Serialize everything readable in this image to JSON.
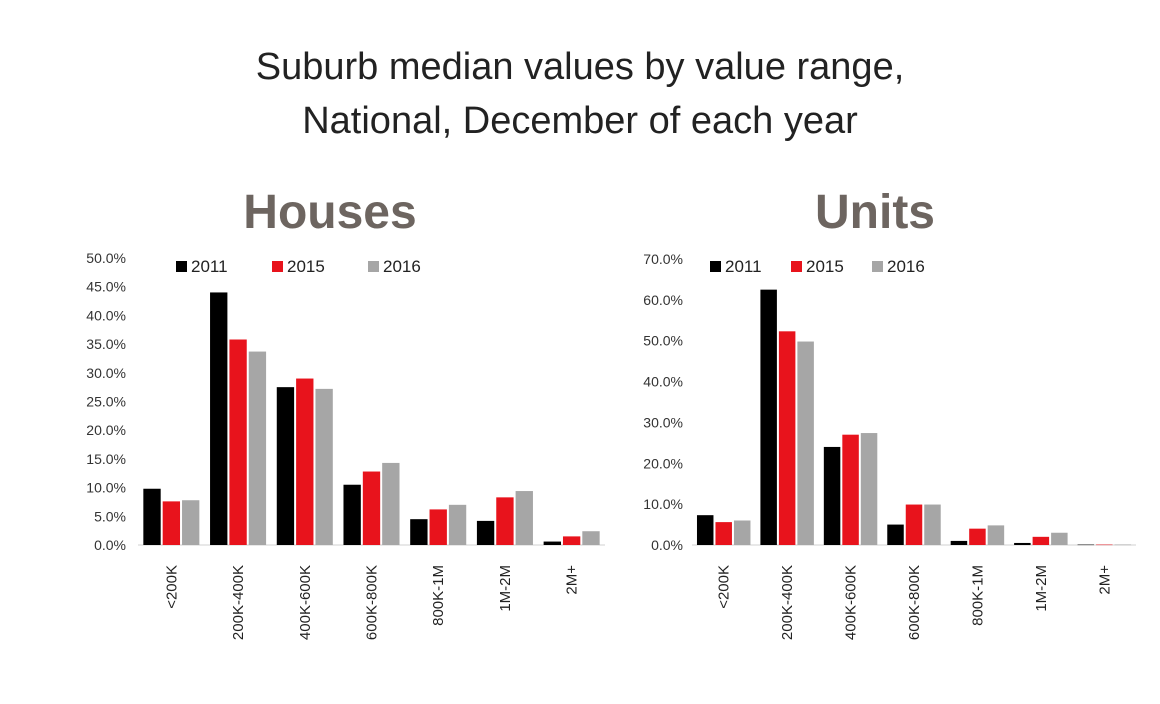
{
  "title_lines": [
    "Suburb median values by value range,",
    "National, December of each year"
  ],
  "chart_data": [
    {
      "type": "bar",
      "title": "Houses",
      "categories": [
        "<200K",
        "200K-400K",
        "400K-600K",
        "600K-800K",
        "800K-1M",
        "1M-2M",
        "2M+"
      ],
      "series": [
        {
          "name": "2011",
          "color": "#000000",
          "values": [
            9.8,
            44.0,
            27.5,
            10.5,
            4.5,
            4.2,
            0.6
          ]
        },
        {
          "name": "2015",
          "color": "#e8131c",
          "values": [
            7.6,
            35.8,
            29.0,
            12.8,
            6.2,
            8.3,
            1.5
          ]
        },
        {
          "name": "2016",
          "color": "#a6a6a6",
          "values": [
            7.8,
            33.7,
            27.2,
            14.3,
            7.0,
            9.4,
            2.4
          ]
        }
      ],
      "ylim": [
        0,
        50
      ],
      "yticks": [
        "0.0%",
        "5.0%",
        "10.0%",
        "15.0%",
        "20.0%",
        "25.0%",
        "30.0%",
        "35.0%",
        "40.0%",
        "45.0%",
        "50.0%"
      ],
      "xlabel": "",
      "ylabel": "",
      "legend": "top-left"
    },
    {
      "type": "bar",
      "title": "Units",
      "categories": [
        "<200K",
        "200K-400K",
        "400K-600K",
        "600K-800K",
        "800K-1M",
        "1M-2M",
        "2M+"
      ],
      "series": [
        {
          "name": "2011",
          "color": "#000000",
          "values": [
            7.3,
            62.5,
            24.0,
            5.0,
            1.0,
            0.5,
            0.1
          ]
        },
        {
          "name": "2015",
          "color": "#e8131c",
          "values": [
            5.6,
            52.3,
            27.0,
            9.9,
            4.0,
            2.0,
            0.1
          ]
        },
        {
          "name": "2016",
          "color": "#a6a6a6",
          "values": [
            6.0,
            49.8,
            27.4,
            9.9,
            4.8,
            3.0,
            0.1
          ]
        }
      ],
      "ylim": [
        0,
        70
      ],
      "yticks": [
        "0.0%",
        "10.0%",
        "20.0%",
        "30.0%",
        "40.0%",
        "50.0%",
        "60.0%",
        "70.0%"
      ],
      "xlabel": "",
      "ylabel": "",
      "legend": "top-left"
    }
  ]
}
